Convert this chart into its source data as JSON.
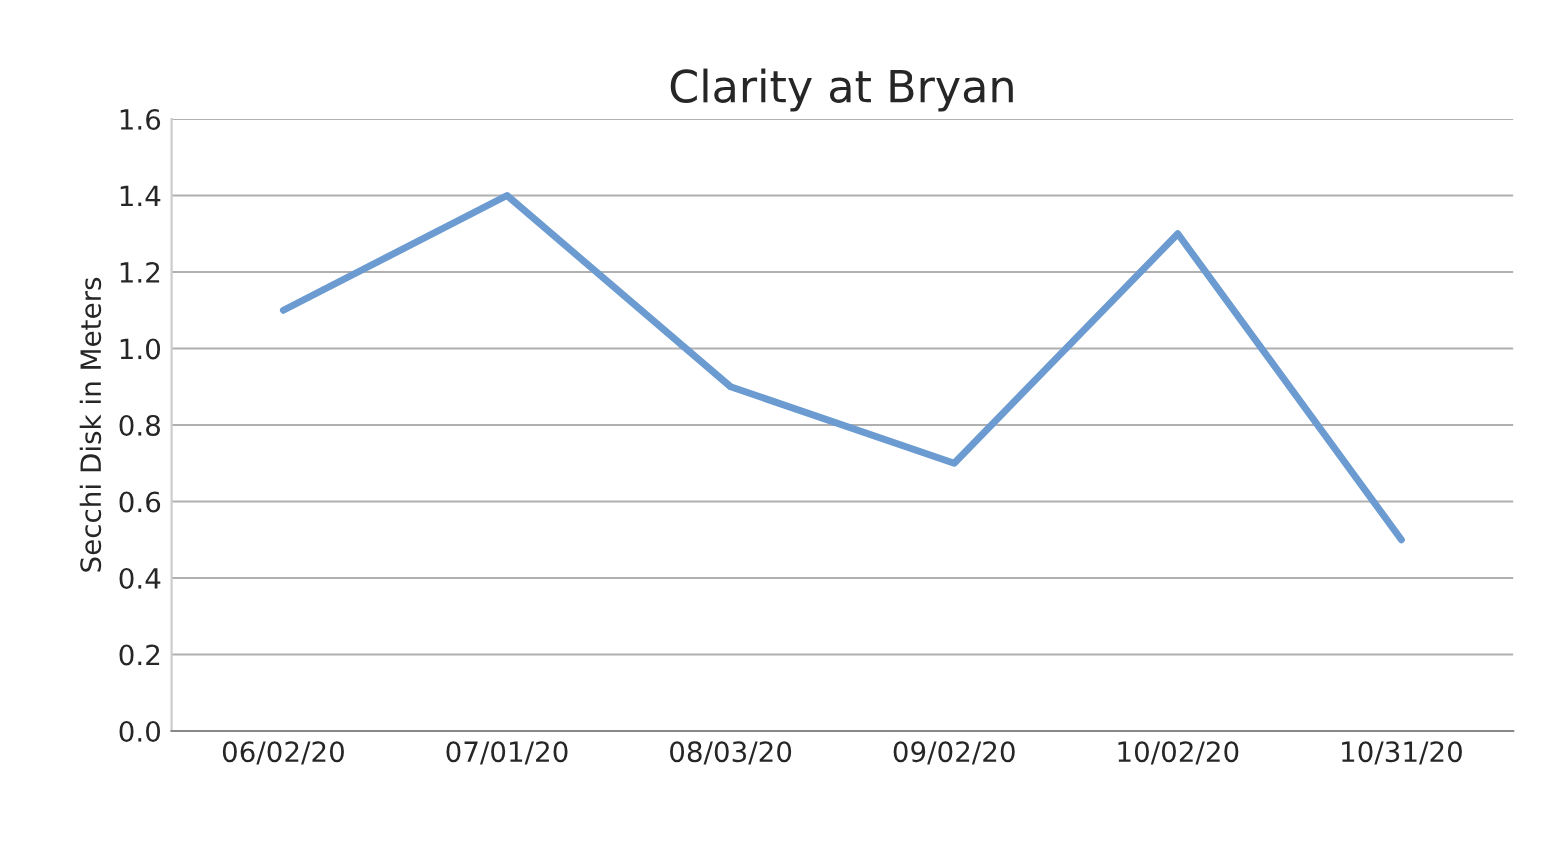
{
  "chart_data": {
    "type": "line",
    "title": "Clarity at Bryan",
    "ylabel": "Secchi Disk in Meters",
    "categories": [
      "06/02/20",
      "07/01/20",
      "08/03/20",
      "09/02/20",
      "10/02/20",
      "10/31/20"
    ],
    "series": [
      {
        "color": "#6b9bd1",
        "values": [
          1.1,
          1.4,
          0.9,
          0.7,
          1.3,
          0.5
        ]
      }
    ],
    "ylim": [
      0,
      1.6
    ],
    "yticks": [
      {
        "value": 0,
        "label": "0.0"
      },
      {
        "value": 0.2,
        "label": "0.2"
      },
      {
        "value": 0.4,
        "label": "0.4"
      },
      {
        "value": 0.6,
        "label": "0.6"
      },
      {
        "value": 0.8,
        "label": "0.8"
      },
      {
        "value": 1.0,
        "label": "1.0"
      },
      {
        "value": 1.2,
        "label": "1.2"
      },
      {
        "value": 1.4,
        "label": "1.4"
      },
      {
        "value": 1.6,
        "label": "1.6"
      }
    ],
    "grid": "y",
    "marker": "none",
    "line_style": "solid"
  }
}
